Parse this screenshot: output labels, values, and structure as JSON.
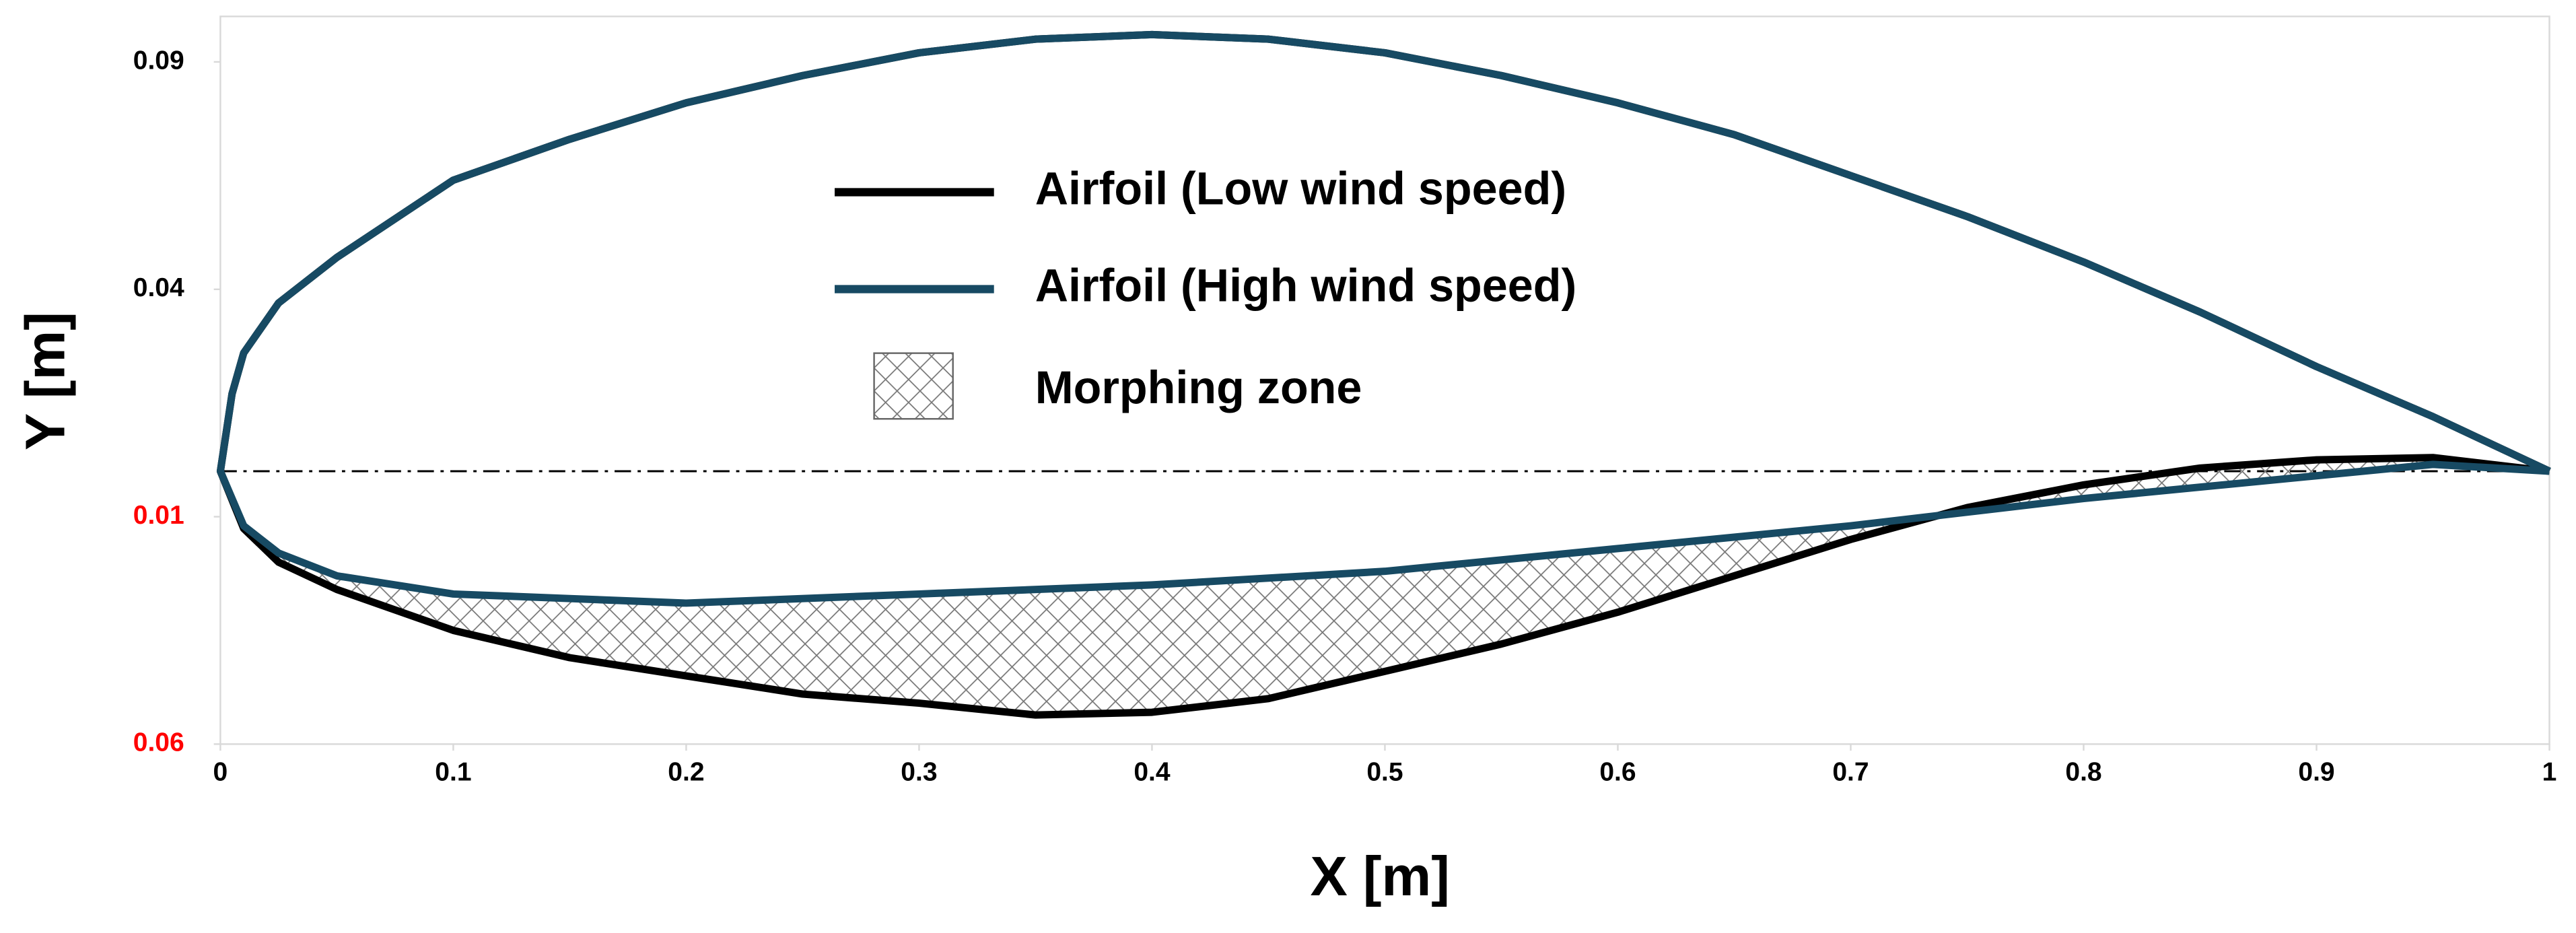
{
  "chart_data": {
    "type": "line",
    "x_label": "X [m]",
    "y_label": "Y [m]",
    "xlim": [
      0,
      1
    ],
    "xticks": [
      0,
      0.1,
      0.2,
      0.3,
      0.4,
      0.5,
      0.6,
      0.7,
      0.8,
      0.9,
      1
    ],
    "ylim": [
      -0.06,
      0.1
    ],
    "yticks": [
      {
        "value": -0.06,
        "label": "0.06"
      },
      {
        "value": -0.01,
        "label": "0.01"
      },
      0.04,
      0.09
    ],
    "ytick_label_colors": [
      "#ff0000",
      "#ff0000",
      "#000000",
      "#000000"
    ],
    "zero_line": "dash-dot",
    "morphing_zone": {
      "name": "Morphing zone",
      "between": [
        0,
        1
      ]
    },
    "series": [
      {
        "name": "Airfoil (Low wind speed)",
        "color": "#000000",
        "x": [
          1,
          0.95,
          0.9,
          0.85,
          0.8,
          0.75,
          0.7,
          0.65,
          0.6,
          0.55,
          0.5,
          0.45,
          0.4,
          0.35,
          0.3,
          0.25,
          0.2,
          0.15,
          0.1,
          0.05,
          0.025,
          0.01,
          0.005,
          0,
          0.01,
          0.025,
          0.05,
          0.1,
          0.15,
          0.2,
          0.25,
          0.3,
          0.35,
          0.4,
          0.45,
          0.5,
          0.55,
          0.6,
          0.65,
          0.7,
          0.75,
          0.8,
          0.85,
          0.9,
          0.95,
          1
        ],
        "values": [
          0,
          0.012,
          0.023,
          0.035,
          0.046,
          0.056,
          0.065,
          0.074,
          0.081,
          0.087,
          0.092,
          0.095,
          0.096,
          0.095,
          0.092,
          0.087,
          0.081,
          0.073,
          0.064,
          0.047,
          0.037,
          0.026,
          0.017,
          0,
          -0.0126,
          -0.02,
          -0.026,
          -0.035,
          -0.041,
          -0.045,
          -0.049,
          -0.051,
          -0.0536,
          -0.053,
          -0.05,
          -0.044,
          -0.038,
          -0.031,
          -0.023,
          -0.015,
          -0.008,
          -0.003,
          0.0007,
          0.0025,
          0.003,
          0
        ]
      },
      {
        "name": "Airfoil (High wind speed)",
        "color": "#174a63",
        "x": [
          1,
          0.95,
          0.9,
          0.85,
          0.8,
          0.75,
          0.7,
          0.65,
          0.6,
          0.55,
          0.5,
          0.45,
          0.4,
          0.35,
          0.3,
          0.25,
          0.2,
          0.15,
          0.1,
          0.05,
          0.025,
          0.01,
          0.005,
          0,
          0.01,
          0.025,
          0.05,
          0.1,
          0.15,
          0.2,
          0.3,
          0.4,
          0.5,
          0.6,
          0.7,
          0.8,
          0.9,
          0.95,
          1
        ],
        "values": [
          0,
          0.012,
          0.023,
          0.035,
          0.046,
          0.056,
          0.065,
          0.074,
          0.081,
          0.087,
          0.092,
          0.095,
          0.096,
          0.095,
          0.092,
          0.087,
          0.081,
          0.073,
          0.064,
          0.047,
          0.037,
          0.026,
          0.017,
          0,
          -0.012,
          -0.018,
          -0.023,
          -0.027,
          -0.028,
          -0.029,
          -0.027,
          -0.025,
          -0.022,
          -0.017,
          -0.012,
          -0.006,
          -0.001,
          0.0015,
          0
        ]
      }
    ]
  }
}
